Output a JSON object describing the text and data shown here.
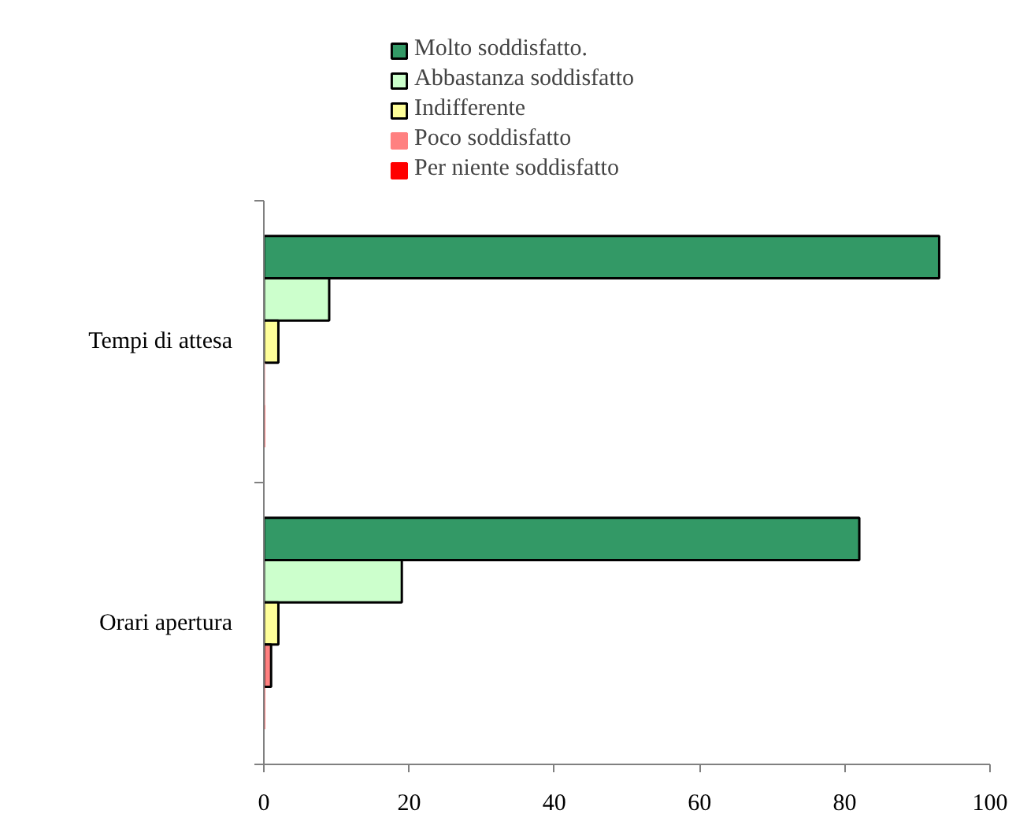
{
  "chart_data": {
    "type": "bar",
    "orientation": "horizontal",
    "categories": [
      "Tempi di attesa",
      "Orari apertura"
    ],
    "series": [
      {
        "name": "Molto soddisfatto.",
        "color": "#339966",
        "values": [
          93,
          82
        ]
      },
      {
        "name": "Abbastanza soddisfatto",
        "color": "#ccffcc",
        "values": [
          9,
          19
        ]
      },
      {
        "name": "Indifferente",
        "color": "#ffff99",
        "values": [
          2,
          2
        ]
      },
      {
        "name": "Poco soddisfatto",
        "color": "#ff8080",
        "values": [
          0,
          1
        ]
      },
      {
        "name": "Per niente soddisfatto",
        "color": "#ff0000",
        "values": [
          0,
          0
        ]
      }
    ],
    "xlim": [
      0,
      100
    ],
    "xticks": [
      0,
      20,
      40,
      60,
      80,
      100
    ],
    "grid": false,
    "legend": "top"
  }
}
